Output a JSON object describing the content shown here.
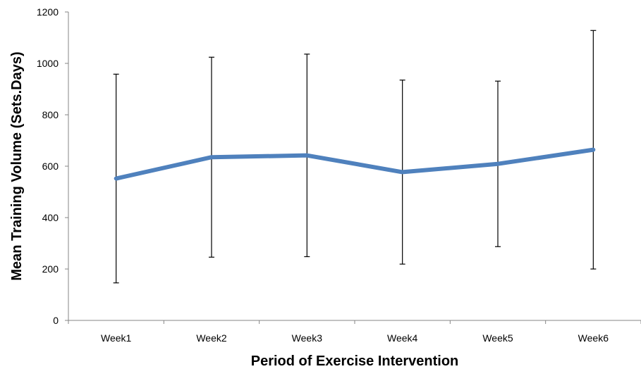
{
  "chart_data": {
    "type": "line",
    "title": "",
    "xlabel": "Period of Exercise Intervention",
    "ylabel": "Mean Training Volume (Sets.Days)",
    "categories": [
      "Week1",
      "Week2",
      "Week3",
      "Week4",
      "Week5",
      "Week6"
    ],
    "series": [
      {
        "values": [
          552,
          635,
          642,
          577,
          609,
          664
        ],
        "error_upper": [
          958,
          1024,
          1036,
          935,
          931,
          1128
        ],
        "error_lower": [
          146,
          246,
          248,
          219,
          287,
          200
        ]
      }
    ],
    "ylim": [
      0,
      1200
    ],
    "yticks": [
      0,
      200,
      400,
      600,
      800,
      1000,
      1200
    ],
    "grid": false,
    "legend": "none",
    "colors": {
      "line": "#4f81bd",
      "error_bar": "#000000",
      "axis": "#868686"
    }
  }
}
